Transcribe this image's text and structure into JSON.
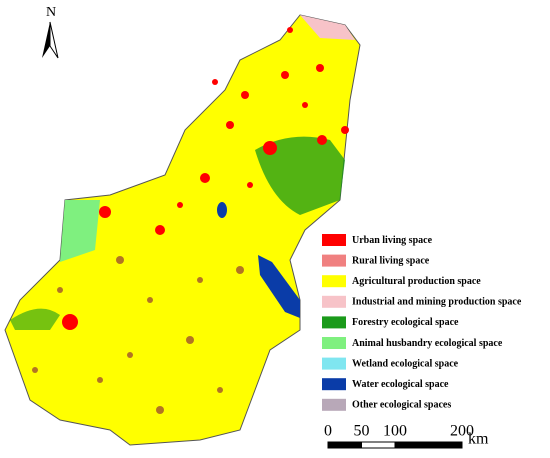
{
  "north_label": "N",
  "legend": [
    {
      "label": "Urban living space",
      "color": "#ff0000"
    },
    {
      "label": "Rural living space",
      "color": "#f08080"
    },
    {
      "label": "Agricultural production space",
      "color": "#ffff00"
    },
    {
      "label": "Industrial and mining production space",
      "color": "#f7c3c8"
    },
    {
      "label": "Forestry ecological space",
      "color": "#1a9a1a"
    },
    {
      "label": "Animal husbandry ecological space",
      "color": "#7ff07f"
    },
    {
      "label": "Wetland ecological space",
      "color": "#7fe6f0"
    },
    {
      "label": "Water ecological space",
      "color": "#0a3ca8"
    },
    {
      "label": "Other ecological spaces",
      "color": "#b8a8b8"
    }
  ],
  "scale_bar": {
    "ticks": [
      0,
      50,
      100,
      200
    ],
    "unit": "km"
  }
}
